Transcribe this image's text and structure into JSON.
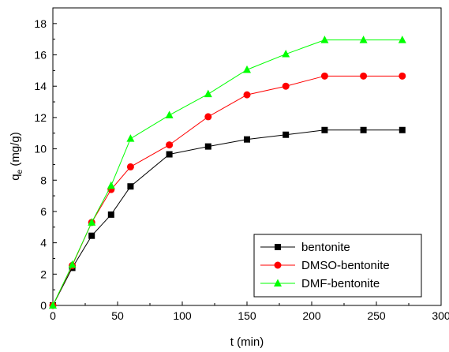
{
  "chart_data": {
    "type": "line",
    "xlabel": "t (min)",
    "ylabel_main": "q",
    "ylabel_sub": "e",
    "ylabel_rest": " (mg/g)",
    "xlim": [
      0,
      300
    ],
    "ylim": [
      0,
      19
    ],
    "xticks": [
      0,
      50,
      100,
      150,
      200,
      250,
      300
    ],
    "yticks": [
      0,
      2,
      4,
      6,
      8,
      10,
      12,
      14,
      16,
      18
    ],
    "grid": false,
    "legend_position": "bottom-right",
    "x": [
      0,
      15,
      30,
      45,
      60,
      90,
      120,
      150,
      180,
      210,
      240,
      270
    ],
    "series": [
      {
        "name": "bentonite",
        "color": "#000000",
        "marker": "square",
        "values": [
          0,
          2.4,
          4.45,
          5.8,
          7.6,
          9.65,
          10.15,
          10.6,
          10.9,
          11.2,
          11.2,
          11.2
        ]
      },
      {
        "name": "DMSO-bentonite",
        "color": "#ff0000",
        "marker": "circle",
        "values": [
          0,
          2.55,
          5.3,
          7.4,
          8.85,
          10.25,
          12.05,
          13.45,
          14.0,
          14.65,
          14.65,
          14.65
        ]
      },
      {
        "name": "DMF-bentonite",
        "color": "#00ff00",
        "marker": "triangle",
        "values": [
          0,
          2.6,
          5.3,
          7.65,
          10.65,
          12.15,
          13.5,
          15.05,
          16.05,
          16.95,
          16.95,
          16.95
        ]
      }
    ]
  }
}
